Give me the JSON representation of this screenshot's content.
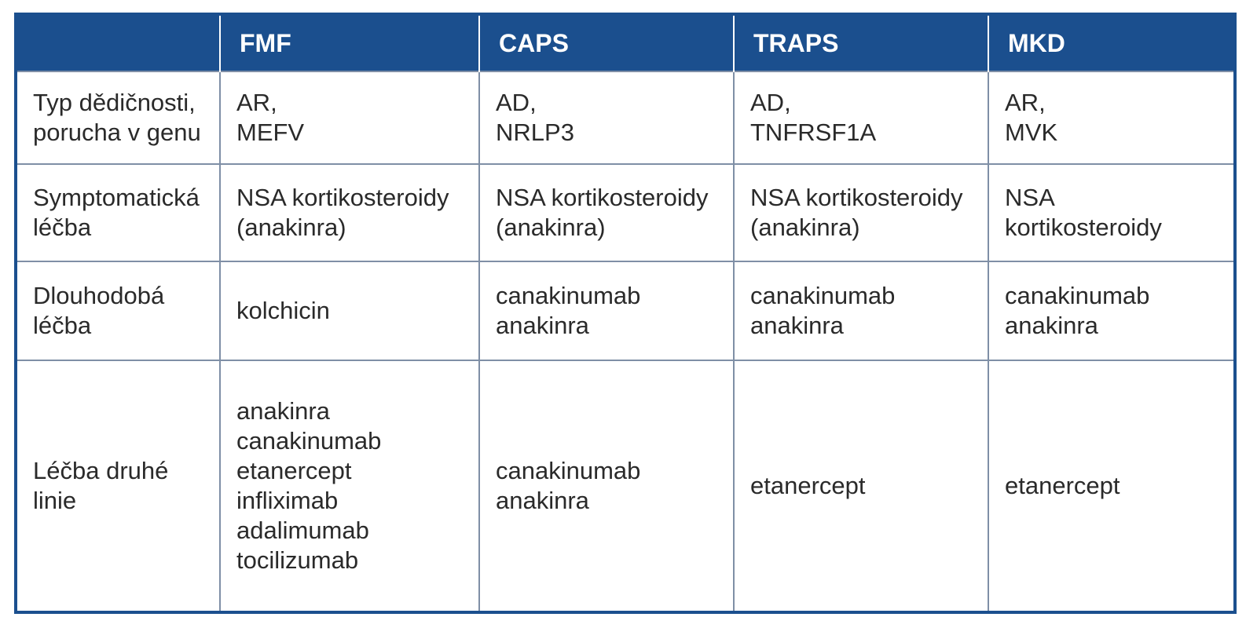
{
  "table": {
    "header": [
      "",
      "FMF",
      "CAPS",
      "TRAPS",
      "MKD"
    ],
    "rows": [
      {
        "label": "Typ dědičnosti,\nporucha v genu",
        "cells": [
          "AR,\nMEFV",
          "AD,\nNRLP3",
          "AD,\nTNFRSF1A",
          "AR,\nMVK"
        ]
      },
      {
        "label": "Symptomatická\nléčba",
        "cells": [
          "NSA kortikosteroidy\n(anakinra)",
          "NSA kortikosteroidy\n(anakinra)",
          "NSA kortikosteroidy\n(anakinra)",
          "NSA\nkortikosteroidy"
        ]
      },
      {
        "label": "Dlouhodobá\nléčba",
        "cells": [
          "kolchicin",
          "canakinumab\nanakinra",
          "canakinumab\nanakinra",
          "canakinumab\nanakinra"
        ]
      },
      {
        "label": "Léčba druhé\nlinie",
        "cells": [
          "anakinra\ncanakinumab\netanercept\ninfliximab\nadalimumab\ntocilizumab",
          "canakinumab\nanakinra",
          "etanercept",
          "etanercept"
        ]
      }
    ]
  },
  "colors": {
    "header_bg": "#1b4f8e",
    "grid_line": "#7f8fa6"
  }
}
